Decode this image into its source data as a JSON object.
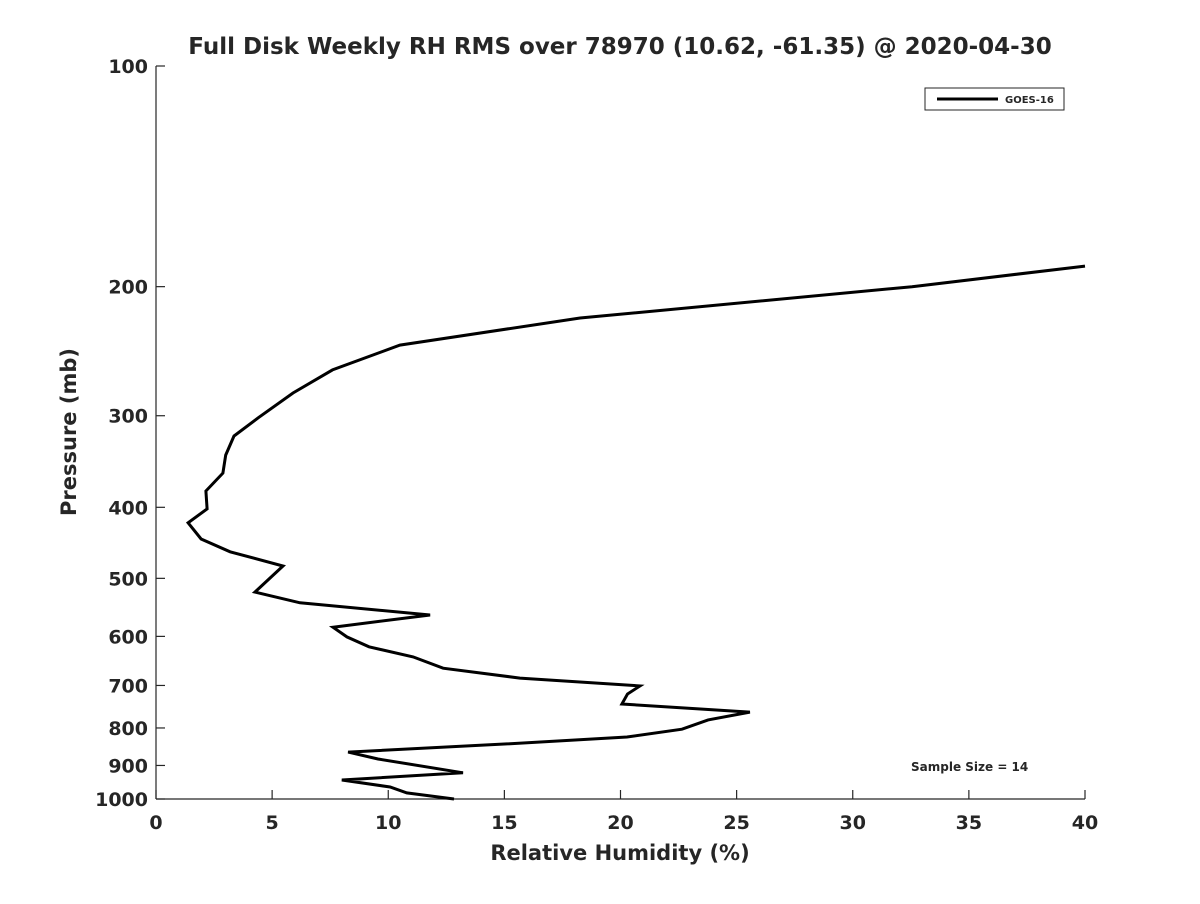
{
  "chart_data": {
    "type": "line",
    "title": "Full Disk Weekly RH RMS over 78970 (10.62, -61.35) @ 2020-04-30",
    "xlabel": "Relative Humidity (%)",
    "ylabel": "Pressure (mb)",
    "xlim": [
      0,
      40
    ],
    "ylim": [
      100,
      1000
    ],
    "yscale": "log",
    "yreversed": true,
    "grid": false,
    "xticks": [
      0,
      5,
      10,
      15,
      20,
      25,
      30,
      35,
      40
    ],
    "yticks": [
      100,
      200,
      300,
      400,
      500,
      600,
      700,
      800,
      900,
      1000
    ],
    "legend": {
      "placement": "top-right",
      "entries": [
        "GOES-16"
      ]
    },
    "annotation": "Sample Size = 14",
    "series": [
      {
        "name": "GOES-16",
        "color": "#000000",
        "x": [
          40,
          32.55,
          18.26,
          10.5,
          7.6,
          5.9,
          4.4,
          3.36,
          3.0,
          2.88,
          2.15,
          2.2,
          1.38,
          1.94,
          3.19,
          5.47,
          4.26,
          6.2,
          11.8,
          7.62,
          8.22,
          9.17,
          11.07,
          12.36,
          15.67,
          20.84,
          20.3,
          20.06,
          25.57,
          23.77,
          22.65,
          20.28,
          15.11,
          8.27,
          9.56,
          13.22,
          8.0,
          10.08,
          10.8,
          12.83
        ],
        "y": [
          187.5,
          200,
          220.7,
          240.3,
          259.8,
          279.3,
          302,
          319.7,
          339.5,
          359.2,
          380,
          402,
          420,
          441.8,
          460,
          481,
          522,
          540,
          561,
          583,
          601,
          620,
          640,
          663,
          684,
          701,
          719,
          742,
          761,
          780,
          803,
          823,
          841,
          863,
          882,
          921,
          942,
          963,
          981,
          1000
        ]
      }
    ]
  }
}
